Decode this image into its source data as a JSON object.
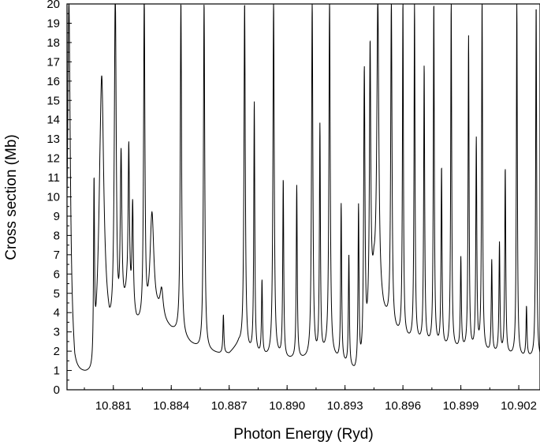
{
  "chart_data": {
    "type": "line",
    "title": "",
    "xlabel": "Photon Energy (Ryd)",
    "ylabel": "Cross section (Mb)",
    "xlim": [
      10.8786,
      10.9031
    ],
    "ylim": [
      0,
      20
    ],
    "xticks": [
      10.881,
      10.884,
      10.887,
      10.89,
      10.893,
      10.896,
      10.899,
      10.902
    ],
    "xtick_labels": [
      "10.881",
      "10.884",
      "10.887",
      "10.890",
      "10.893",
      "10.896",
      "10.899",
      "10.902"
    ],
    "yticks": [
      0,
      1,
      2,
      3,
      4,
      5,
      6,
      7,
      8,
      9,
      10,
      11,
      12,
      13,
      14,
      15,
      16,
      17,
      18,
      19,
      20
    ],
    "ytick_labels": [
      "0",
      "1",
      "2",
      "3",
      "4",
      "5",
      "6",
      "7",
      "8",
      "9",
      "10",
      "11",
      "12",
      "13",
      "14",
      "15",
      "16",
      "17",
      "18",
      "19",
      "20"
    ],
    "grid": false,
    "legend": "none",
    "background": [
      [
        10.8787,
        3.5
      ],
      [
        10.879,
        0.7
      ],
      [
        10.8794,
        0.6
      ],
      [
        10.8797,
        0.5
      ],
      [
        10.88,
        0.3
      ],
      [
        10.8803,
        5.0
      ],
      [
        10.8808,
        2.5
      ],
      [
        10.8812,
        2.0
      ],
      [
        10.8817,
        4.5
      ],
      [
        10.8822,
        3.2
      ],
      [
        10.8826,
        3.0
      ],
      [
        10.8833,
        3.6
      ],
      [
        10.884,
        3.0
      ],
      [
        10.8845,
        2.7
      ],
      [
        10.885,
        2.3
      ],
      [
        10.8855,
        2.0
      ],
      [
        10.886,
        1.9
      ],
      [
        10.8865,
        1.8
      ],
      [
        10.887,
        1.8
      ],
      [
        10.8875,
        2.3
      ],
      [
        10.888,
        1.8
      ],
      [
        10.8885,
        1.7
      ],
      [
        10.889,
        1.6
      ],
      [
        10.8895,
        1.6
      ],
      [
        10.89,
        1.5
      ],
      [
        10.8905,
        1.5
      ],
      [
        10.891,
        1.5
      ],
      [
        10.8915,
        1.5
      ],
      [
        10.892,
        1.8
      ],
      [
        10.8925,
        1.5
      ],
      [
        10.893,
        1.2
      ],
      [
        10.8935,
        0.8
      ],
      [
        10.894,
        1.0
      ],
      [
        10.8945,
        5.5
      ],
      [
        10.895,
        3.8
      ],
      [
        10.8955,
        2.9
      ],
      [
        10.896,
        2.6
      ],
      [
        10.8965,
        2.4
      ],
      [
        10.897,
        2.3
      ],
      [
        10.8975,
        2.2
      ],
      [
        10.898,
        2.1
      ],
      [
        10.8985,
        2.0
      ],
      [
        10.899,
        2.0
      ],
      [
        10.8995,
        1.9
      ],
      [
        10.9,
        1.9
      ],
      [
        10.9005,
        1.8
      ],
      [
        10.901,
        1.8
      ],
      [
        10.9015,
        1.7
      ],
      [
        10.902,
        1.6
      ],
      [
        10.9025,
        1.6
      ],
      [
        10.9031,
        1.5
      ]
    ],
    "peaks": [
      {
        "x": 10.8787,
        "peak": 20.0,
        "width": 8e-05
      },
      {
        "x": 10.88,
        "peak": 10.0,
        "width": 3e-05
      },
      {
        "x": 10.8804,
        "peak": 16.0,
        "width": 0.00012
      },
      {
        "x": 10.8811,
        "peak": 20.0,
        "width": 6e-05
      },
      {
        "x": 10.8814,
        "peak": 11.5,
        "width": 5e-05
      },
      {
        "x": 10.8818,
        "peak": 12.2,
        "width": 4e-05
      },
      {
        "x": 10.882,
        "peak": 9.2,
        "width": 4e-05
      },
      {
        "x": 10.8826,
        "peak": 20.0,
        "width": 4e-05
      },
      {
        "x": 10.883,
        "peak": 8.9,
        "width": 0.00012
      },
      {
        "x": 10.8835,
        "peak": 4.9,
        "width": 0.0001
      },
      {
        "x": 10.8845,
        "peak": 20.0,
        "width": 4e-05
      },
      {
        "x": 10.8857,
        "peak": 20.0,
        "width": 4e-05
      },
      {
        "x": 10.8867,
        "peak": 3.8,
        "width": 3e-05
      },
      {
        "x": 10.8878,
        "peak": 20.0,
        "width": 4e-05
      },
      {
        "x": 10.8883,
        "peak": 14.8,
        "width": 3e-05
      },
      {
        "x": 10.8887,
        "peak": 5.5,
        "width": 3e-05
      },
      {
        "x": 10.8893,
        "peak": 20.0,
        "width": 4e-05
      },
      {
        "x": 10.8898,
        "peak": 10.8,
        "width": 3e-05
      },
      {
        "x": 10.8905,
        "peak": 10.5,
        "width": 3e-05
      },
      {
        "x": 10.8913,
        "peak": 20.0,
        "width": 4e-05
      },
      {
        "x": 10.8917,
        "peak": 13.5,
        "width": 3e-05
      },
      {
        "x": 10.8922,
        "peak": 20.0,
        "width": 4e-05
      },
      {
        "x": 10.8928,
        "peak": 9.5,
        "width": 3e-05
      },
      {
        "x": 10.8932,
        "peak": 6.8,
        "width": 3e-05
      },
      {
        "x": 10.8937,
        "peak": 9.2,
        "width": 3e-05
      },
      {
        "x": 10.894,
        "peak": 16.3,
        "width": 4e-05
      },
      {
        "x": 10.8943,
        "peak": 17.5,
        "width": 4e-05
      },
      {
        "x": 10.8947,
        "peak": 20.0,
        "width": 6e-05
      },
      {
        "x": 10.8954,
        "peak": 20.0,
        "width": 4e-05
      },
      {
        "x": 10.896,
        "peak": 20.0,
        "width": 3e-05
      },
      {
        "x": 10.8966,
        "peak": 20.0,
        "width": 3e-05
      },
      {
        "x": 10.8971,
        "peak": 16.7,
        "width": 3e-05
      },
      {
        "x": 10.8976,
        "peak": 20.0,
        "width": 3e-05
      },
      {
        "x": 10.898,
        "peak": 11.4,
        "width": 3e-05
      },
      {
        "x": 10.8985,
        "peak": 20.0,
        "width": 3e-05
      },
      {
        "x": 10.899,
        "peak": 6.7,
        "width": 3e-05
      },
      {
        "x": 10.8994,
        "peak": 18.2,
        "width": 3e-05
      },
      {
        "x": 10.8998,
        "peak": 12.8,
        "width": 3e-05
      },
      {
        "x": 10.9001,
        "peak": 20.0,
        "width": 3e-05
      },
      {
        "x": 10.9006,
        "peak": 6.6,
        "width": 3e-05
      },
      {
        "x": 10.901,
        "peak": 7.5,
        "width": 3e-05
      },
      {
        "x": 10.9013,
        "peak": 11.4,
        "width": 3e-05
      },
      {
        "x": 10.9019,
        "peak": 20.0,
        "width": 3e-05
      },
      {
        "x": 10.9024,
        "peak": 4.2,
        "width": 3e-05
      },
      {
        "x": 10.9029,
        "peak": 20.0,
        "width": 3e-05
      }
    ]
  }
}
